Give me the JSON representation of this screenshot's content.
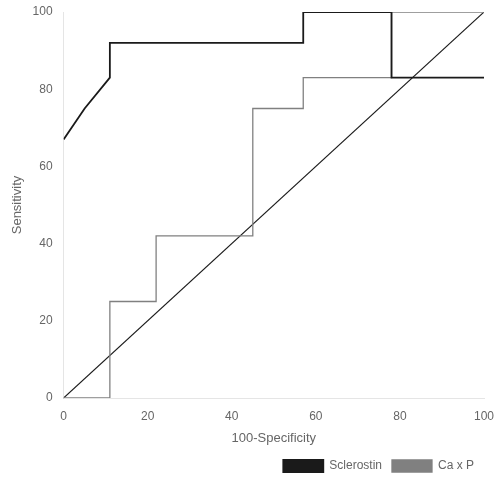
{
  "chart_data": {
    "type": "line",
    "xlabel": "100-Specificity",
    "ylabel": "Sensitivity",
    "xlim": [
      0,
      100
    ],
    "ylim": [
      0,
      100
    ],
    "xticks": [
      0,
      20,
      40,
      60,
      80,
      100
    ],
    "yticks": [
      0,
      20,
      40,
      60,
      80,
      100
    ],
    "grid": false,
    "legend": "lower right",
    "series": [
      {
        "color": "#1a1a1a",
        "x": [
          0,
          100
        ],
        "values": [
          0,
          100
        ]
      },
      {
        "name": "Ca x P",
        "color": "#808080",
        "x": [
          0,
          11,
          11,
          22,
          22,
          45,
          45,
          57,
          57,
          78,
          78,
          100
        ],
        "values": [
          0,
          0,
          25,
          25,
          42,
          42,
          75,
          75,
          83,
          83,
          100,
          100
        ]
      },
      {
        "name": "Sclerostin",
        "color": "#1a1a1a",
        "x": [
          0,
          5,
          11,
          11,
          22,
          57,
          57,
          78,
          78,
          100
        ],
        "values": [
          67,
          75,
          83,
          92,
          92,
          92,
          100,
          100,
          83,
          83
        ]
      }
    ]
  }
}
